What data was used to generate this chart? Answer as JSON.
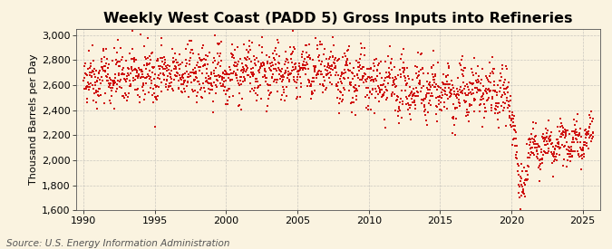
{
  "title": "Weekly West Coast (PADD 5) Gross Inputs into Refineries",
  "ylabel": "Thousand Barrels per Day",
  "source": "Source: U.S. Energy Information Administration",
  "xlim": [
    1989.5,
    2026.2
  ],
  "ylim": [
    1600,
    3050
  ],
  "yticks": [
    1600,
    1800,
    2000,
    2200,
    2400,
    2600,
    2800,
    3000
  ],
  "xticks": [
    1990,
    1995,
    2000,
    2005,
    2010,
    2015,
    2020,
    2025
  ],
  "dot_color": "#CC0000",
  "background_color": "#FAF3E0",
  "plot_bg_color": "#FAF3E0",
  "grid_color": "#AAAAAA",
  "title_fontsize": 11.5,
  "label_fontsize": 8,
  "source_fontsize": 7.5,
  "seed": 42
}
